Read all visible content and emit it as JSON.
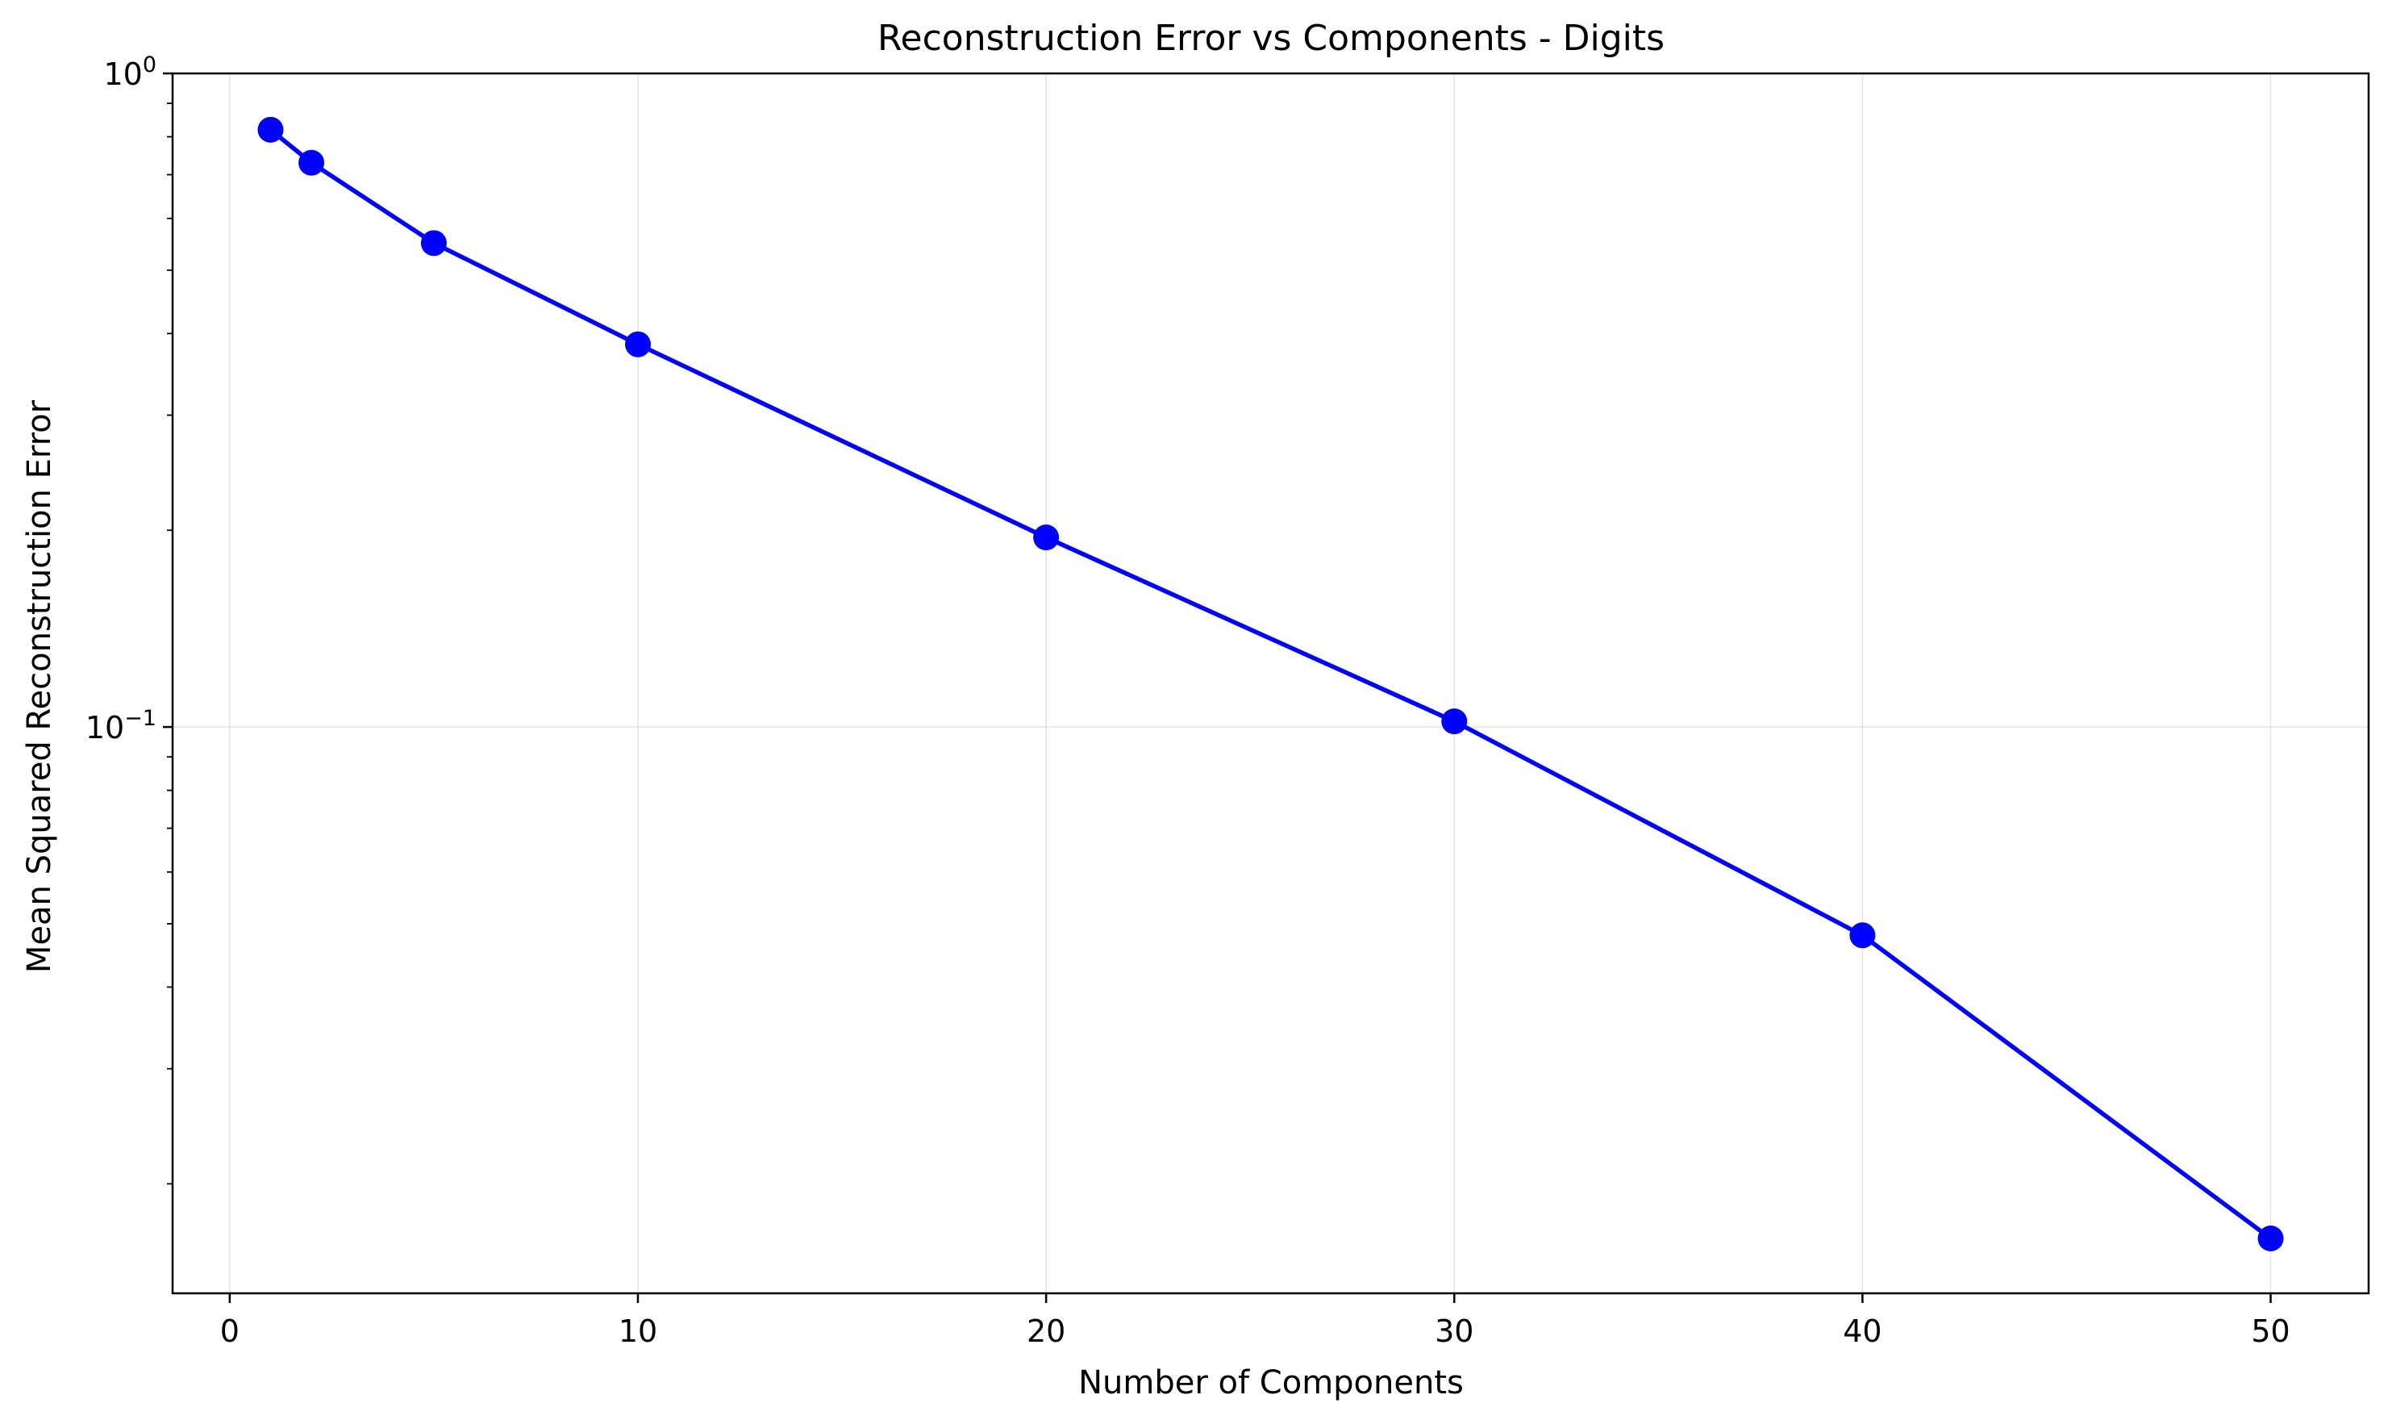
{
  "chart_data": {
    "type": "line",
    "title": "Reconstruction Error vs Components - Digits",
    "xlabel": "Number of Components",
    "ylabel": "Mean Squared Reconstruction Error",
    "yscale": "log",
    "xlim": [
      -1.4,
      52.4
    ],
    "ylim": [
      0.0136,
      1.0
    ],
    "grid": true,
    "x_ticks": [
      0,
      10,
      20,
      30,
      40,
      50
    ],
    "x_tick_labels": [
      "0",
      "10",
      "20",
      "30",
      "40",
      "50"
    ],
    "y_ticks": [
      0.1,
      1.0
    ],
    "y_tick_labels": [
      {
        "base": "10",
        "exp": "−1"
      },
      {
        "base": "10",
        "exp": "0"
      }
    ],
    "series": [
      {
        "color": "#0000ff",
        "marker": "circle",
        "x": [
          1,
          2,
          5,
          10,
          20,
          30,
          40,
          50
        ],
        "y": [
          0.82,
          0.73,
          0.55,
          0.385,
          0.195,
          0.102,
          0.048,
          0.0165
        ]
      }
    ]
  }
}
